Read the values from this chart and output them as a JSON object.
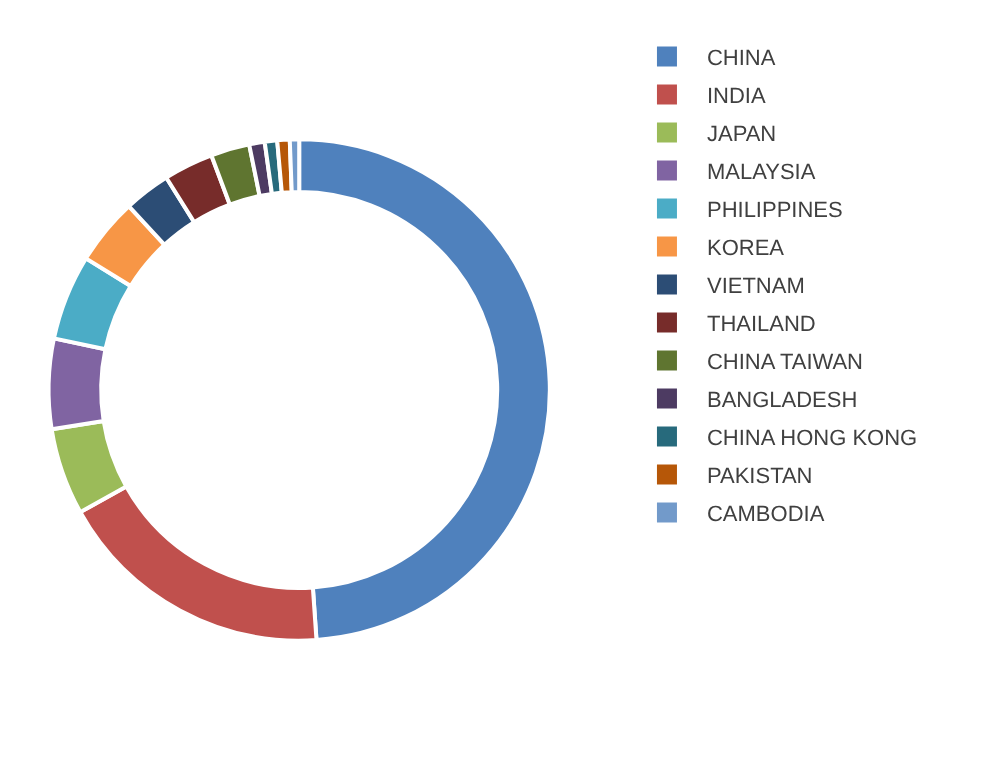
{
  "chart_data": {
    "type": "donut",
    "categories": [
      "CHINA",
      "INDIA",
      "JAPAN",
      "MALAYSIA",
      "PHILIPPINES",
      "KOREA",
      "VIETNAM",
      "THAILAND",
      "CHINA TAIWAN",
      "BANGLADESH",
      "CHINA HONG KONG",
      "PAKISTAN",
      "CAMBODIA"
    ],
    "values": [
      48.9,
      18,
      5.6,
      5.8,
      5.5,
      4.3,
      3,
      3.2,
      2.5,
      1,
      0.8,
      0.8,
      0.6
    ],
    "colors": [
      "#4f81bd",
      "#c0504d",
      "#9bbb59",
      "#8064a2",
      "#4bacc6",
      "#f79646",
      "#2c4d75",
      "#772c2a",
      "#5f7530",
      "#4d3b62",
      "#276a7c",
      "#b65708",
      "#729aca"
    ],
    "legend": "right"
  }
}
